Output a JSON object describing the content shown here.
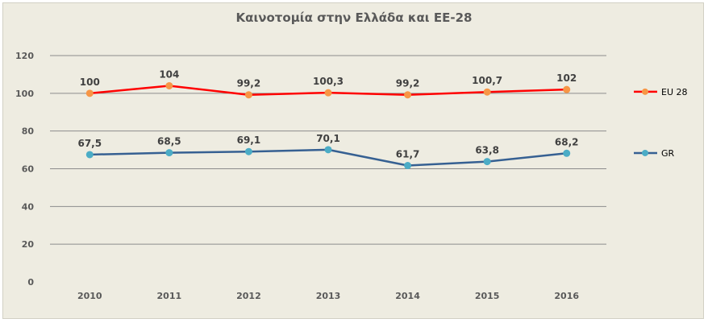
{
  "chart_data": {
    "type": "line",
    "title": "Καινοτομία στην Ελλάδα και ΕΕ-28",
    "categories": [
      "2010",
      "2011",
      "2012",
      "2013",
      "2014",
      "2015",
      "2016"
    ],
    "ylim": [
      0,
      120
    ],
    "yticks": [
      0,
      20,
      40,
      60,
      80,
      100,
      120
    ],
    "grid": true,
    "legend_position": "right",
    "series": [
      {
        "name": "EU 28",
        "values": [
          100,
          104,
          99.2,
          100.3,
          99.2,
          100.7,
          102
        ],
        "labels": [
          "100",
          "104",
          "99,2",
          "100,3",
          "99,2",
          "100,7",
          "102"
        ],
        "line_color": "#ff0000",
        "marker_color": "#f79646"
      },
      {
        "name": "GR",
        "values": [
          67.5,
          68.5,
          69.1,
          70.1,
          61.7,
          63.8,
          68.2
        ],
        "labels": [
          "67,5",
          "68,5",
          "69,1",
          "70,1",
          "61,7",
          "63,8",
          "68,2"
        ],
        "line_color": "#366092",
        "marker_color": "#4bacc6"
      }
    ]
  }
}
